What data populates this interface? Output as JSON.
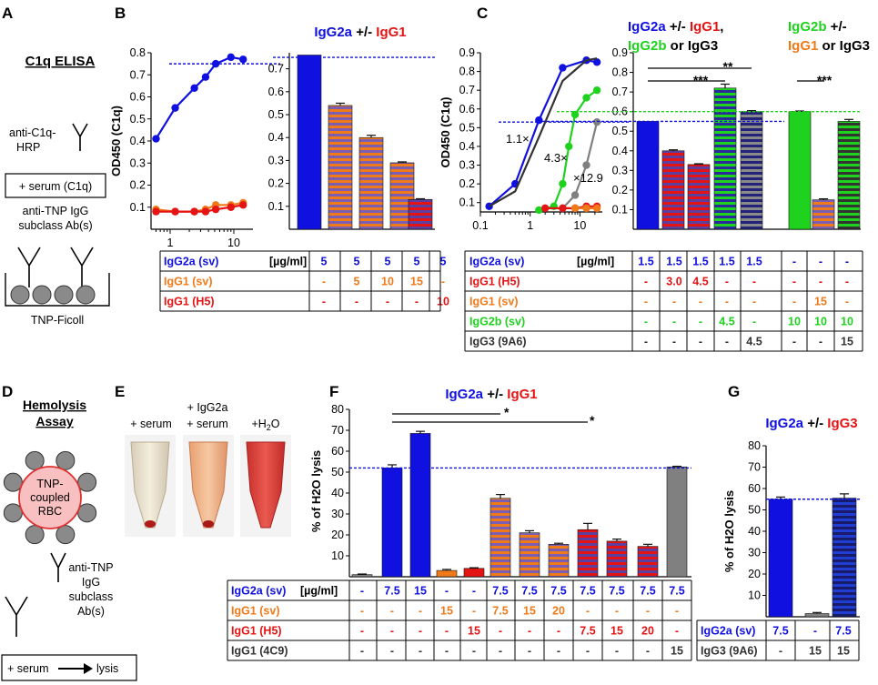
{
  "colors": {
    "blue": "#1010e0",
    "red": "#e51414",
    "orange": "#f07a1a",
    "green": "#1ed21e",
    "gray": "#808080",
    "dark": "#333333",
    "navy": "#1a1a7a"
  },
  "panel_letters": [
    "A",
    "B",
    "C",
    "D",
    "E",
    "F",
    "G"
  ],
  "panelA": {
    "title": "C1q ELISA",
    "hrp_line1": "anti-C1q-",
    "hrp_line2": "HRP",
    "serum_box": "+ serum (C1q)",
    "ab_line1": "anti-TNP IgG",
    "ab_line2": "subclass Ab(s)",
    "ficoll": "TNP-Ficoll"
  },
  "panelD": {
    "title_line1": "Hemolysis",
    "title_line2": "Assay",
    "rbc_line1": "TNP-",
    "rbc_line2": "coupled",
    "rbc_line3": "RBC",
    "ab_line1": "anti-TNP",
    "ab_line2": "IgG",
    "ab_line3": "subclass",
    "ab_line4": "Ab(s)",
    "box_left": "+ serum",
    "box_right": "lysis"
  },
  "panelE": {
    "tube1": "+ serum",
    "tube2_line1": "+ IgG2a",
    "tube2_line2": "+ serum",
    "tube3_prefix": "+H",
    "tube3_sub": "2",
    "tube3_suffix": "O"
  },
  "chart_data": [
    {
      "id": "B-curve",
      "type": "line",
      "ylabel": "OD450 (C1q)",
      "xscale": "log",
      "yticks": [
        "0.1",
        "0.2",
        "0.3",
        "0.4",
        "0.5",
        "0.6",
        "0.7",
        "0.8"
      ],
      "xticks": [
        "1",
        "10"
      ],
      "ylim": [
        0.0,
        0.8
      ],
      "series": [
        {
          "name": "IgG2a",
          "color": "blue",
          "x": [
            0.6,
            1.2,
            2.4,
            3.6,
            5.2,
            9,
            14
          ],
          "y": [
            0.41,
            0.55,
            0.64,
            0.69,
            0.75,
            0.78,
            0.77
          ]
        },
        {
          "name": "IgG1 (sv)",
          "color": "orange",
          "x": [
            0.6,
            1.2,
            2.4,
            3.6,
            5.2,
            9,
            14
          ],
          "y": [
            0.09,
            0.08,
            0.08,
            0.09,
            0.11,
            0.11,
            0.12
          ]
        },
        {
          "name": "IgG1 (H5)",
          "color": "red",
          "x": [
            0.6,
            1.2,
            2.4,
            3.6,
            5.2,
            9,
            14
          ],
          "y": [
            0.08,
            0.08,
            0.08,
            0.08,
            0.09,
            0.1,
            0.11
          ]
        }
      ],
      "reference_line": 0.75
    },
    {
      "id": "B-bars",
      "type": "bar",
      "title_parts": [
        "IgG2a",
        "+/-",
        "IgG1"
      ],
      "yticks": [
        "0.1",
        "0.2",
        "0.3",
        "0.4",
        "0.5",
        "0.6",
        "0.7"
      ],
      "ylim": [
        0.0,
        0.77
      ],
      "values": [
        0.76,
        0.54,
        0.4,
        0.29,
        0.13
      ],
      "errors": [
        0,
        0.01,
        0.01,
        0.004,
        0.003
      ],
      "bar_styles": [
        "solid-blue",
        "stripe-orange",
        "stripe-orange",
        "stripe-orange",
        "stripe-red"
      ],
      "reference_line": 0.75,
      "table": {
        "header": "[µg/ml]",
        "rows": [
          {
            "label": "IgG2a (sv)",
            "color": "blue",
            "cells": [
              "5",
              "5",
              "5",
              "5",
              "5"
            ]
          },
          {
            "label": "IgG1 (sv)",
            "color": "orange",
            "cells": [
              "-",
              "5",
              "10",
              "15",
              "-"
            ]
          },
          {
            "label": "IgG1 (H5)",
            "color": "red",
            "cells": [
              "-",
              "-",
              "-",
              "-",
              "10"
            ]
          }
        ]
      }
    },
    {
      "id": "C-curve",
      "type": "line",
      "ylabel": "OD450 (C1q)",
      "xscale": "log",
      "yticks": [
        "0.1",
        "0.2",
        "0.3",
        "0.4",
        "0.5",
        "0.6",
        "0.7",
        "0.8",
        "0.9"
      ],
      "xticks": [
        "0.1",
        "1",
        "10"
      ],
      "ylim": [
        0.05,
        0.9
      ],
      "series": [
        {
          "name": "IgG2a",
          "color": "blue",
          "x": [
            0.15,
            0.5,
            1.5,
            4.5,
            13.5,
            22
          ],
          "y": [
            0.08,
            0.2,
            0.54,
            0.82,
            0.86,
            0.85
          ]
        },
        {
          "name": "IgG2a reference",
          "color": "dark",
          "x": [
            0.15,
            0.5,
            1.5,
            4.5,
            13.5,
            22
          ],
          "y": [
            0.08,
            0.16,
            0.45,
            0.75,
            0.86,
            0.87
          ]
        },
        {
          "name": "IgG2b",
          "color": "green",
          "x": [
            1.5,
            3.0,
            4.5,
            6,
            8,
            13.5,
            22
          ],
          "y": [
            0.06,
            0.08,
            0.2,
            0.4,
            0.57,
            0.66,
            0.7
          ]
        },
        {
          "name": "IgG3",
          "color": "gray",
          "x": [
            4.5,
            8,
            13.5,
            22
          ],
          "y": [
            0.07,
            0.14,
            0.3,
            0.53
          ]
        },
        {
          "name": "IgG1",
          "color": "red",
          "x": [
            2,
            4.5,
            8,
            13.5,
            22
          ],
          "y": [
            0.07,
            0.07,
            0.07,
            0.08,
            0.08
          ]
        },
        {
          "name": "IgG1 (sv)",
          "color": "orange",
          "x": [
            8,
            13.5,
            22
          ],
          "y": [
            0.07,
            0.07,
            0.07
          ]
        }
      ],
      "annotations": [
        "1.1×",
        "4.3×",
        "×12.9"
      ],
      "reference_line": 0.53
    },
    {
      "id": "C-bars",
      "type": "bar",
      "title_lines": [
        [
          [
            "IgG2a",
            "blue"
          ],
          [
            " +/- ",
            "black"
          ],
          [
            "IgG1",
            "red"
          ],
          [
            ",",
            "black"
          ]
        ],
        [
          [
            "IgG2b",
            "green"
          ],
          [
            " or IgG3",
            "black"
          ]
        ]
      ],
      "title2_lines": [
        [
          [
            "IgG2b",
            "green"
          ],
          [
            " +/-",
            "black"
          ]
        ],
        [
          [
            "IgG1",
            "orange"
          ],
          [
            " or IgG3",
            "black"
          ]
        ]
      ],
      "yticks": [
        "0.1",
        "0.2",
        "0.3",
        "0.4",
        "0.5",
        "0.6",
        "0.7",
        "0.8",
        "0.9"
      ],
      "ylim": [
        0.0,
        0.9
      ],
      "values": [
        0.55,
        0.4,
        0.33,
        0.72,
        0.6,
        0.6,
        0.15,
        0.55
      ],
      "errors": [
        0,
        0.005,
        0.004,
        0.02,
        0.005,
        0.003,
        0.005,
        0.01
      ],
      "bar_styles": [
        "solid-blue",
        "stripe-red",
        "stripe-red",
        "stripe-green",
        "stripe-gray",
        "solid-green",
        "stripe-orange",
        "stripe-gray-green"
      ],
      "significance": [
        "**",
        "***",
        "***"
      ],
      "reference_lines": [
        0.55,
        0.6
      ],
      "table": {
        "header": "[µg/ml]",
        "rows": [
          {
            "label": "IgG2a (sv)",
            "color": "blue",
            "cells": [
              "1.5",
              "1.5",
              "1.5",
              "1.5",
              "1.5",
              "-",
              "-",
              "-"
            ]
          },
          {
            "label": "IgG1  (H5)",
            "color": "red",
            "cells": [
              "-",
              "3.0",
              "4.5",
              "-",
              "-",
              "-",
              "-",
              "-"
            ]
          },
          {
            "label": "IgG1   (sv)",
            "color": "orange",
            "cells": [
              "-",
              "-",
              "-",
              "-",
              "-",
              "-",
              "15",
              "-"
            ]
          },
          {
            "label": "IgG2b (sv)",
            "color": "green",
            "cells": [
              "-",
              "-",
              "-",
              "4.5",
              "-",
              "10",
              "10",
              "10"
            ]
          },
          {
            "label": "IgG3 (9A6)",
            "color": "dark",
            "cells": [
              "-",
              "-",
              "-",
              "-",
              "4.5",
              "-",
              "-",
              "15"
            ]
          }
        ]
      }
    },
    {
      "id": "F-bars",
      "type": "bar",
      "title_parts": [
        "IgG2a",
        "+/-",
        "IgG1"
      ],
      "ylabel": "% of H2O lysis",
      "yticks": [
        "10",
        "20",
        "30",
        "40",
        "50",
        "60",
        "70",
        "80"
      ],
      "ylim": [
        0,
        80
      ],
      "values": [
        1,
        52,
        68.5,
        3,
        4,
        37.5,
        21,
        15.5,
        22.5,
        17,
        14.5,
        52.5
      ],
      "errors": [
        0.3,
        1.5,
        1,
        0.5,
        0.3,
        1.8,
        1,
        0.5,
        3,
        1,
        1,
        0.3
      ],
      "bar_styles": [
        "solid-gray",
        "solid-blue",
        "solid-blue",
        "solid-orange",
        "solid-red",
        "stripe-orange",
        "stripe-orange",
        "stripe-orange",
        "stripe-red",
        "stripe-red",
        "stripe-red",
        "solid-gray"
      ],
      "significance": [
        "*",
        "*"
      ],
      "reference_line": 52,
      "table": {
        "header": "[µg/ml]",
        "rows": [
          {
            "label": "IgG2a (sv)",
            "color": "blue",
            "cells": [
              "-",
              "7.5",
              "15",
              "-",
              "-",
              "7.5",
              "7.5",
              "7.5",
              "7.5",
              "7.5",
              "7.5",
              "7.5"
            ]
          },
          {
            "label": "IgG1  (sv)",
            "color": "orange",
            "cells": [
              "-",
              "-",
              "-",
              "15",
              "-",
              "7.5",
              "15",
              "20",
              "-",
              "-",
              "-",
              "-"
            ]
          },
          {
            "label": "IgG1   (H5)",
            "color": "red",
            "cells": [
              "-",
              "-",
              "-",
              "-",
              "15",
              "-",
              "-",
              "-",
              "7.5",
              "15",
              "20",
              "-"
            ]
          },
          {
            "label": "IgG1 (4C9)",
            "color": "dark",
            "cells": [
              "-",
              "-",
              "-",
              "-",
              "-",
              "-",
              "-",
              "-",
              "-",
              "-",
              "-",
              "15"
            ]
          }
        ]
      }
    },
    {
      "id": "G-bars",
      "type": "bar",
      "title_parts": [
        "IgG2a",
        "+/-",
        "IgG3"
      ],
      "ylabel": "% of H2O lysis",
      "yticks": [
        "10",
        "20",
        "30",
        "40",
        "50",
        "60",
        "70",
        "80"
      ],
      "ylim": [
        0,
        80
      ],
      "values": [
        55,
        1.5,
        55.5
      ],
      "errors": [
        1,
        0.5,
        2
      ],
      "bar_styles": [
        "solid-blue",
        "solid-gray",
        "stripe-blue"
      ],
      "reference_line": 55,
      "table": {
        "rows": [
          {
            "label": "IgG2a (sv)",
            "color": "blue",
            "cells": [
              "7.5",
              "-",
              "7.5"
            ]
          },
          {
            "label": "IgG3 (9A6)",
            "color": "dark",
            "cells": [
              "-",
              "15",
              "15"
            ]
          }
        ]
      }
    }
  ]
}
